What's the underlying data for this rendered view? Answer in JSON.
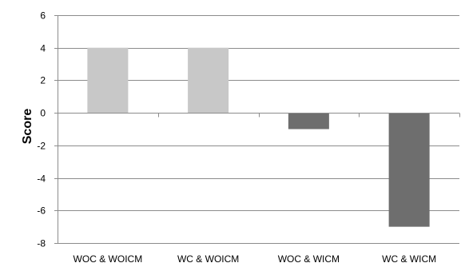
{
  "chart_data": {
    "type": "bar",
    "title": "",
    "xlabel": "",
    "ylabel": "Score",
    "ylim": [
      -8,
      6
    ],
    "yticks": [
      6,
      4,
      2,
      0,
      -2,
      -4,
      -6,
      -8
    ],
    "grid": true,
    "categories": [
      "WOC & WOICM",
      "WC & WOICM",
      "WOC & WICM",
      "WC & WICM"
    ],
    "values": [
      4,
      4,
      -1,
      -7
    ],
    "colors": [
      "#c8c8c8",
      "#c8c8c8",
      "#6e6e6e",
      "#6e6e6e"
    ]
  }
}
